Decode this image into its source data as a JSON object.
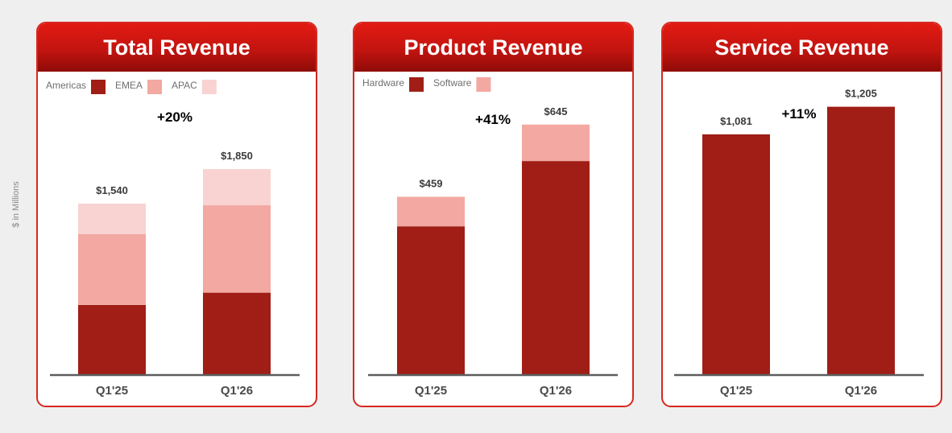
{
  "y_axis_label": "$ in Millions",
  "colors": {
    "dark": "#a01e16",
    "mid": "#f3a8a2",
    "light": "#f8d3d1",
    "axis": "#5e5e5e",
    "header_start": "#e21b12",
    "header_end": "#8e0b07",
    "border": "#d8271f"
  },
  "chart_data": [
    {
      "type": "bar",
      "stacked": true,
      "title": "Total Revenue",
      "change_label": "+20%",
      "categories": [
        "Q1'25",
        "Q1'26"
      ],
      "totals_labels": [
        "$1,540",
        "$1,850"
      ],
      "totals": [
        1540,
        1850
      ],
      "legend": [
        "Americas",
        "EMEA",
        "APAC"
      ],
      "series": [
        {
          "name": "Americas",
          "color": "#a01e16",
          "values": [
            630,
            740
          ]
        },
        {
          "name": "EMEA",
          "color": "#f3a8a2",
          "values": [
            635,
            785
          ]
        },
        {
          "name": "APAC",
          "color": "#f8d3d1",
          "values": [
            275,
            325
          ]
        }
      ],
      "ylim": [
        0,
        3000
      ]
    },
    {
      "type": "bar",
      "stacked": true,
      "title": "Product Revenue",
      "change_label": "+41%",
      "categories": [
        "Q1'25",
        "Q1'26"
      ],
      "totals_labels": [
        "$459",
        "$645"
      ],
      "totals": [
        459,
        645
      ],
      "legend": [
        "Hardware",
        "Software"
      ],
      "series": [
        {
          "name": "Hardware",
          "color": "#a01e16",
          "values": [
            383,
            551
          ]
        },
        {
          "name": "Software",
          "color": "#f3a8a2",
          "values": [
            76,
            94
          ]
        }
      ],
      "ylim": [
        0,
        860
      ]
    },
    {
      "type": "bar",
      "stacked": false,
      "title": "Service Revenue",
      "change_label": "+11%",
      "categories": [
        "Q1'25",
        "Q1'26"
      ],
      "totals_labels": [
        "$1,081",
        "$1,205"
      ],
      "totals": [
        1081,
        1205
      ],
      "legend": [],
      "series": [
        {
          "name": "",
          "color": "#a01e16",
          "values": [
            1081,
            1205
          ]
        }
      ],
      "ylim": [
        0,
        1500
      ]
    }
  ]
}
